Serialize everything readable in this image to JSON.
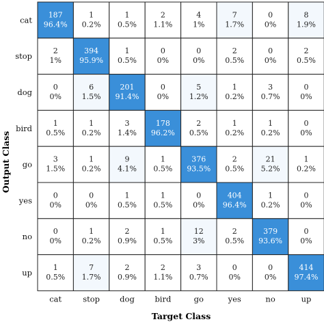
{
  "chart_data": {
    "type": "heatmap",
    "xlabel": "Target Class",
    "ylabel": "Output Class",
    "x_categories": [
      "cat",
      "stop",
      "dog",
      "bird",
      "go",
      "yes",
      "no",
      "up"
    ],
    "y_categories": [
      "cat",
      "stop",
      "dog",
      "bird",
      "go",
      "yes",
      "no",
      "up"
    ],
    "counts": [
      [
        187,
        1,
        1,
        2,
        4,
        7,
        0,
        8
      ],
      [
        2,
        394,
        1,
        0,
        0,
        2,
        0,
        2
      ],
      [
        0,
        6,
        201,
        0,
        5,
        1,
        3,
        0
      ],
      [
        1,
        1,
        3,
        178,
        2,
        1,
        1,
        0
      ],
      [
        3,
        1,
        9,
        1,
        376,
        2,
        21,
        1
      ],
      [
        0,
        0,
        1,
        1,
        0,
        404,
        1,
        0
      ],
      [
        0,
        1,
        2,
        1,
        12,
        2,
        379,
        0
      ],
      [
        1,
        7,
        2,
        2,
        3,
        0,
        0,
        414
      ]
    ],
    "percents": [
      [
        "96.4%",
        "0.2%",
        "0.5%",
        "1.1%",
        "1%",
        "1.7%",
        "0%",
        "1.9%"
      ],
      [
        "1%",
        "95.9%",
        "0.5%",
        "0%",
        "0%",
        "0.5%",
        "0%",
        "0.5%"
      ],
      [
        "0%",
        "1.5%",
        "91.4%",
        "0%",
        "1.2%",
        "0.2%",
        "0.7%",
        "0%"
      ],
      [
        "0.5%",
        "0.2%",
        "1.4%",
        "96.2%",
        "0.5%",
        "0.2%",
        "0.2%",
        "0%"
      ],
      [
        "1.5%",
        "0.2%",
        "4.1%",
        "0.5%",
        "93.5%",
        "0.5%",
        "5.2%",
        "0.2%"
      ],
      [
        "0%",
        "0%",
        "0.5%",
        "0.5%",
        "0%",
        "96.4%",
        "0.2%",
        "0%"
      ],
      [
        "0%",
        "0.2%",
        "0.9%",
        "0.5%",
        "3%",
        "0.5%",
        "93.6%",
        "0%"
      ],
      [
        "0.5%",
        "1.7%",
        "0.9%",
        "1.1%",
        "0.7%",
        "0%",
        "0%",
        "97.4%"
      ]
    ],
    "colors": {
      "diagonal": "#3a8fd9",
      "diagonal_text": "#ffffff",
      "off_diagonal": "#ffffff",
      "low_tint": "#f3f8fd",
      "text": "#222222",
      "grid": "#222222"
    }
  }
}
